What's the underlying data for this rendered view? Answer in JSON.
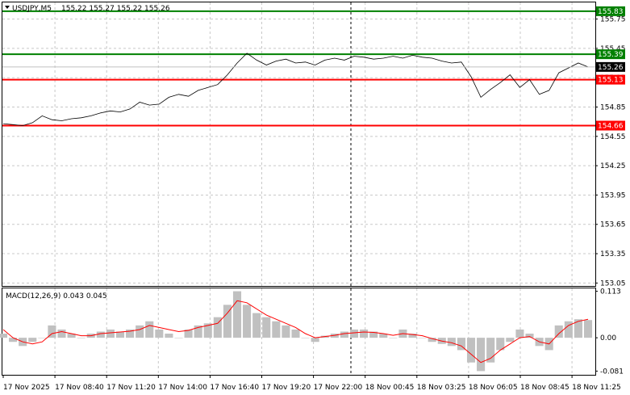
{
  "header": {
    "symbol": "USDJPY,M5",
    "ohlc": "155.22 155.27 155.22 155.26",
    "dropdown_icon": "triangle-down-icon"
  },
  "indicator": {
    "label": "MACD(12,26,9) 0.043 0.045"
  },
  "colors": {
    "price_line": "#000000",
    "resistance": "#008000",
    "support": "#ff0000",
    "macd_hist": "#c0c0c0",
    "macd_signal": "#ff0000",
    "grid": "#c8c8c8",
    "current_price_bg": "#000000"
  },
  "chart_data": [
    {
      "type": "line",
      "name": "price",
      "title": "USDJPY,M5",
      "y_ticks": [
        "155.75",
        "155.45",
        "155.15",
        "154.85",
        "154.55",
        "154.25",
        "153.95",
        "153.65",
        "153.35",
        "153.05"
      ],
      "y_range": [
        153.02,
        155.92
      ],
      "x_ticks": [
        "17 Nov 2025",
        "17 Nov 08:40",
        "17 Nov 11:20",
        "17 Nov 14:00",
        "17 Nov 16:40",
        "17 Nov 19:20",
        "17 Nov 22:00",
        "18 Nov 00:45",
        "18 Nov 03:25",
        "18 Nov 06:05",
        "18 Nov 08:45",
        "18 Nov 11:25"
      ],
      "series_values": [
        154.68,
        154.67,
        154.66,
        154.69,
        154.76,
        154.72,
        154.71,
        154.73,
        154.74,
        154.76,
        154.79,
        154.81,
        154.8,
        154.83,
        154.9,
        154.87,
        154.88,
        154.95,
        154.98,
        154.96,
        155.02,
        155.05,
        155.08,
        155.18,
        155.3,
        155.4,
        155.33,
        155.28,
        155.32,
        155.34,
        155.3,
        155.31,
        155.28,
        155.33,
        155.35,
        155.33,
        155.37,
        155.36,
        155.34,
        155.35,
        155.37,
        155.35,
        155.38,
        155.36,
        155.35,
        155.32,
        155.3,
        155.31,
        155.16,
        154.95,
        155.03,
        155.1,
        155.18,
        155.05,
        155.13,
        154.98,
        155.02,
        155.2,
        155.25,
        155.3,
        155.26
      ],
      "levels": [
        {
          "value": "155.83",
          "kind": "resistance"
        },
        {
          "value": "155.39",
          "kind": "resistance"
        },
        {
          "value": "155.13",
          "kind": "support"
        },
        {
          "value": "154.66",
          "kind": "support"
        }
      ],
      "current_price": "155.26",
      "grid": true
    },
    {
      "type": "bar",
      "name": "MACD(12,26,9)",
      "y_ticks": [
        "0.113",
        "0.00",
        "-0.081"
      ],
      "y_range": [
        -0.09,
        0.12
      ],
      "histogram": [
        0.01,
        -0.01,
        -0.02,
        -0.01,
        0.0,
        0.03,
        0.02,
        0.01,
        0.0,
        0.01,
        0.015,
        0.02,
        0.015,
        0.02,
        0.03,
        0.04,
        0.02,
        0.01,
        0.0,
        0.02,
        0.03,
        0.035,
        0.05,
        0.08,
        0.113,
        0.08,
        0.06,
        0.05,
        0.04,
        0.03,
        0.02,
        0.0,
        -0.01,
        0.005,
        0.01,
        0.015,
        0.02,
        0.02,
        0.015,
        0.01,
        0.0,
        0.02,
        0.01,
        0.0,
        -0.01,
        -0.015,
        -0.02,
        -0.03,
        -0.06,
        -0.081,
        -0.06,
        -0.03,
        -0.01,
        0.02,
        0.01,
        -0.02,
        -0.03,
        0.03,
        0.04,
        0.045,
        0.043
      ],
      "signal": [
        0.02,
        0.0,
        -0.01,
        -0.015,
        -0.01,
        0.01,
        0.015,
        0.01,
        0.005,
        0.005,
        0.01,
        0.012,
        0.014,
        0.016,
        0.02,
        0.03,
        0.025,
        0.02,
        0.015,
        0.018,
        0.025,
        0.03,
        0.035,
        0.06,
        0.09,
        0.085,
        0.07,
        0.055,
        0.045,
        0.035,
        0.025,
        0.01,
        0.0,
        0.003,
        0.006,
        0.01,
        0.012,
        0.014,
        0.013,
        0.01,
        0.006,
        0.01,
        0.008,
        0.005,
        -0.002,
        -0.008,
        -0.012,
        -0.02,
        -0.04,
        -0.06,
        -0.05,
        -0.03,
        -0.015,
        0.0,
        0.003,
        -0.01,
        -0.015,
        0.01,
        0.03,
        0.04,
        0.045
      ],
      "grid": true
    }
  ]
}
